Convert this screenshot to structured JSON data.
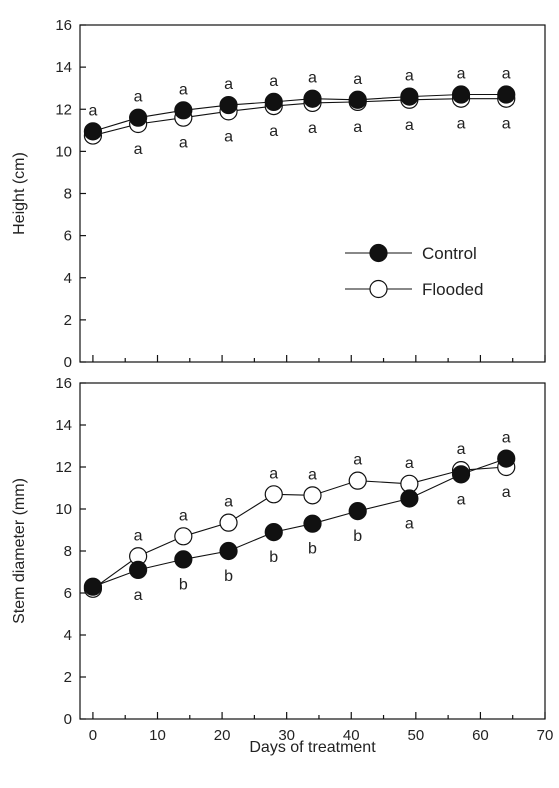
{
  "chart_data": [
    {
      "type": "line",
      "panel": "top",
      "title": "",
      "ylabel": "Height (cm)",
      "xlabel": "",
      "xlim": [
        -2,
        70
      ],
      "ylim": [
        0,
        16
      ],
      "yticks": [
        0,
        2,
        4,
        6,
        8,
        10,
        12,
        14,
        16
      ],
      "x": [
        0,
        7,
        14,
        21,
        28,
        34,
        41,
        49,
        57,
        64
      ],
      "series": [
        {
          "name": "Control",
          "marker": "filled-circle",
          "color": "#111111",
          "values": [
            10.95,
            11.6,
            11.95,
            12.2,
            12.35,
            12.5,
            12.45,
            12.6,
            12.7,
            12.7
          ]
        },
        {
          "name": "Flooded",
          "marker": "open-circle",
          "color": "#111111",
          "values": [
            10.75,
            11.3,
            11.6,
            11.9,
            12.15,
            12.3,
            12.35,
            12.45,
            12.5,
            12.5
          ]
        }
      ],
      "annotations_above": [
        "a",
        "a",
        "a",
        "a",
        "a",
        "a",
        "a",
        "a",
        "a",
        "a"
      ],
      "annotations_below": [
        "",
        "a",
        "a",
        "a",
        "a",
        "a",
        "a",
        "a",
        "a",
        "a"
      ],
      "legend": {
        "position": "right-middle",
        "entries": [
          "Control",
          "Flooded"
        ]
      },
      "grid": false
    },
    {
      "type": "line",
      "panel": "bottom",
      "title": "",
      "ylabel": "Stem diameter (mm)",
      "xlabel": "Days of treatment",
      "xlim": [
        -2,
        70
      ],
      "ylim": [
        0,
        16
      ],
      "xticks": [
        0,
        10,
        20,
        30,
        40,
        50,
        60,
        70
      ],
      "yticks": [
        0,
        2,
        4,
        6,
        8,
        10,
        12,
        14,
        16
      ],
      "x": [
        0,
        7,
        14,
        21,
        28,
        34,
        41,
        49,
        57,
        64
      ],
      "series": [
        {
          "name": "Control",
          "marker": "filled-circle",
          "color": "#111111",
          "values": [
            6.3,
            7.1,
            7.6,
            8.0,
            8.9,
            9.3,
            9.9,
            10.5,
            11.65,
            12.4
          ]
        },
        {
          "name": "Flooded",
          "marker": "open-circle",
          "color": "#111111",
          "values": [
            6.2,
            7.75,
            8.7,
            9.35,
            10.7,
            10.65,
            11.35,
            11.2,
            11.85,
            12.0
          ]
        }
      ],
      "flooded_labels": [
        "",
        "a",
        "a",
        "a",
        "a",
        "a",
        "a",
        "a",
        "a",
        "a"
      ],
      "control_labels": [
        "",
        "a",
        "b",
        "b",
        "b",
        "b",
        "b",
        "a",
        "a",
        "a"
      ],
      "grid": false
    }
  ]
}
